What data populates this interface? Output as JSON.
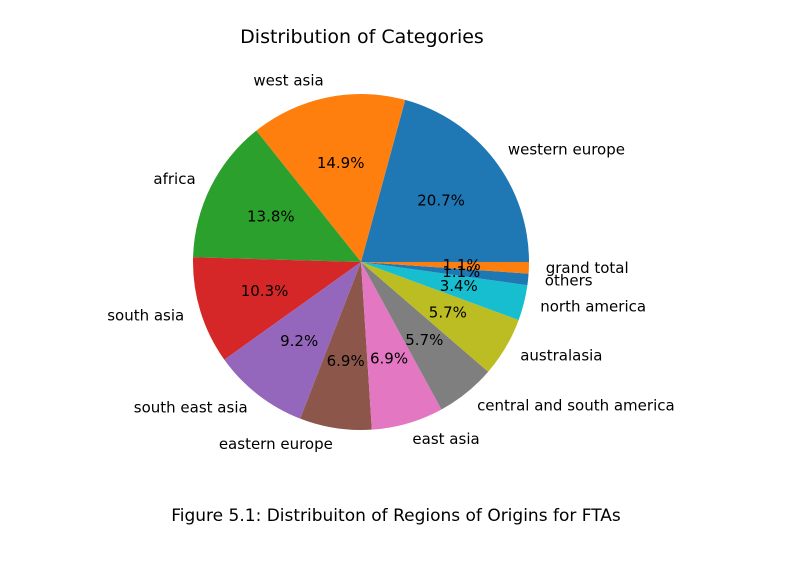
{
  "chart_data": {
    "type": "pie",
    "title": "Distribution of Categories",
    "categories": [
      "western europe",
      "west asia",
      "africa",
      "south asia",
      "south east asia",
      "eastern europe",
      "east asia",
      "central and south america",
      "australasia",
      "north america",
      "others",
      "grand total"
    ],
    "values": [
      20.7,
      14.9,
      13.8,
      10.3,
      9.2,
      6.9,
      6.9,
      5.7,
      5.7,
      3.4,
      1.1,
      1.1
    ],
    "percent_labels": [
      "20.7%",
      "14.9%",
      "13.8%",
      "10.3%",
      "9.2%",
      "6.9%",
      "6.9%",
      "5.7%",
      "5.7%",
      "3.4%",
      "1.1%",
      "1.1%"
    ],
    "colors": [
      "#1f77b4",
      "#ff7f0e",
      "#2ca02c",
      "#d62728",
      "#9467bd",
      "#8c564b",
      "#e377c2",
      "#7f7f7f",
      "#bcbd22",
      "#17becf",
      "#1f77b4",
      "#ff7f0e"
    ],
    "start_angle_deg": 0,
    "direction": "counterclockwise"
  },
  "caption": "Figure 5.1: Distribuiton of Regions of Origins for FTAs"
}
